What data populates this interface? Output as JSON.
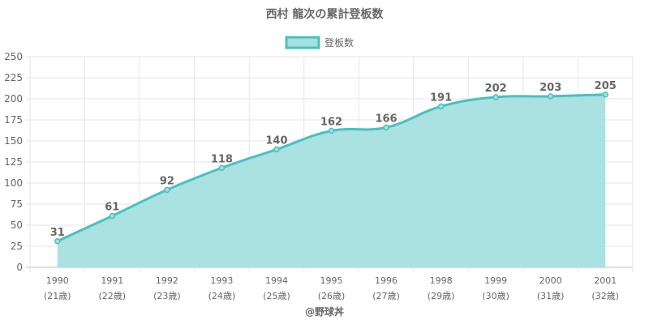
{
  "chart_data": {
    "type": "area",
    "title": "西村 龍次の累計登板数",
    "legend": {
      "position": "top",
      "label": "登板数"
    },
    "categories": [
      "1990",
      "1991",
      "1992",
      "1993",
      "1994",
      "1995",
      "1996",
      "1998",
      "1999",
      "2000",
      "2001"
    ],
    "sublabels": [
      "(21歳)",
      "(22歳)",
      "(23歳)",
      "(24歳)",
      "(25歳)",
      "(26歳)",
      "(27歳)",
      "(29歳)",
      "(30歳)",
      "(31歳)",
      "(32歳)"
    ],
    "series": [
      {
        "name": "登板数",
        "values": [
          31,
          61,
          92,
          118,
          140,
          162,
          166,
          191,
          202,
          203,
          205
        ]
      }
    ],
    "ylim": [
      0,
      250
    ],
    "yticks": [
      0,
      25,
      50,
      75,
      100,
      125,
      150,
      175,
      200,
      225,
      250
    ],
    "grid": true,
    "colors": {
      "line": "#4bc0c0",
      "fill": "#a5dfdf",
      "text": "#666666",
      "grid": "#e6e6e6"
    },
    "credit": "@野球丼"
  }
}
